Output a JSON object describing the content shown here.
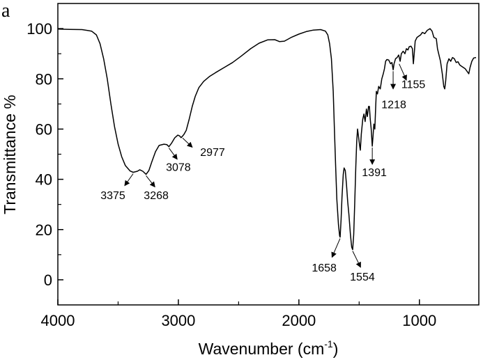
{
  "chart_data": {
    "type": "line",
    "panel_label": "a",
    "xlabel": "Wavenumber (cm",
    "xlabel_sup": "-1",
    "xlabel_close": ")",
    "ylabel": "Transmittance %",
    "xlim": [
      4000,
      507
    ],
    "ylim": [
      -10,
      110
    ],
    "x_ticks": [
      4000,
      3000,
      2000,
      1000
    ],
    "x_tick_labels": [
      "4000",
      "3000",
      "2000",
      "1000"
    ],
    "x_minor_ticks": [
      3500,
      2500,
      1500
    ],
    "y_ticks": [
      0,
      20,
      40,
      60,
      80,
      100
    ],
    "y_tick_labels": [
      "0",
      "20",
      "40",
      "60",
      "80",
      "100"
    ],
    "y_minor_ticks": [
      -10,
      10,
      30,
      50,
      70,
      90,
      110
    ],
    "grid": false,
    "series": [
      {
        "name": "spectrum",
        "color": "#000000",
        "points": [
          [
            4000,
            99.8
          ],
          [
            3900,
            99.7
          ],
          [
            3800,
            99.6
          ],
          [
            3720,
            99.0
          ],
          [
            3680,
            97.5
          ],
          [
            3650,
            94
          ],
          [
            3620,
            88
          ],
          [
            3590,
            80
          ],
          [
            3560,
            70
          ],
          [
            3530,
            61
          ],
          [
            3500,
            54
          ],
          [
            3470,
            49
          ],
          [
            3440,
            45.5
          ],
          [
            3400,
            43.3
          ],
          [
            3375,
            42.8
          ],
          [
            3340,
            43.2
          ],
          [
            3320,
            43.8
          ],
          [
            3295,
            43.2
          ],
          [
            3268,
            42.0
          ],
          [
            3245,
            43.5
          ],
          [
            3220,
            47
          ],
          [
            3190,
            51
          ],
          [
            3160,
            53.5
          ],
          [
            3120,
            54
          ],
          [
            3095,
            53.8
          ],
          [
            3078,
            53.0
          ],
          [
            3055,
            54.5
          ],
          [
            3030,
            56.5
          ],
          [
            3005,
            57.6
          ],
          [
            2990,
            57.3
          ],
          [
            2977,
            56.6
          ],
          [
            2955,
            57.8
          ],
          [
            2935,
            59.5
          ],
          [
            2910,
            64
          ],
          [
            2885,
            69
          ],
          [
            2860,
            73
          ],
          [
            2830,
            76.5
          ],
          [
            2790,
            79
          ],
          [
            2740,
            81
          ],
          [
            2690,
            82.5
          ],
          [
            2620,
            84.5
          ],
          [
            2550,
            86.5
          ],
          [
            2480,
            89
          ],
          [
            2400,
            92
          ],
          [
            2330,
            94.2
          ],
          [
            2260,
            95.5
          ],
          [
            2200,
            95.6
          ],
          [
            2160,
            94.8
          ],
          [
            2120,
            95.0
          ],
          [
            2060,
            96.6
          ],
          [
            2000,
            97.8
          ],
          [
            1940,
            98.8
          ],
          [
            1880,
            99.4
          ],
          [
            1820,
            99.6
          ],
          [
            1780,
            99.0
          ],
          [
            1760,
            97.5
          ],
          [
            1745,
            94
          ],
          [
            1730,
            88
          ],
          [
            1715,
            75
          ],
          [
            1705,
            60
          ],
          [
            1695,
            45
          ],
          [
            1685,
            32
          ],
          [
            1672,
            22
          ],
          [
            1662,
            17.5
          ],
          [
            1658,
            17.0
          ],
          [
            1650,
            24
          ],
          [
            1642,
            33
          ],
          [
            1632,
            42
          ],
          [
            1625,
            44.5
          ],
          [
            1615,
            43.5
          ],
          [
            1605,
            38
          ],
          [
            1595,
            31
          ],
          [
            1585,
            26
          ],
          [
            1572,
            18
          ],
          [
            1562,
            13
          ],
          [
            1554,
            12.0
          ],
          [
            1545,
            18
          ],
          [
            1537,
            30
          ],
          [
            1528,
            45
          ],
          [
            1520,
            55
          ],
          [
            1513,
            60
          ],
          [
            1505,
            57
          ],
          [
            1495,
            53
          ],
          [
            1490,
            51.6
          ],
          [
            1482,
            58
          ],
          [
            1470,
            64
          ],
          [
            1460,
            66
          ],
          [
            1450,
            63
          ],
          [
            1440,
            68
          ],
          [
            1432,
            65
          ],
          [
            1422,
            69
          ],
          [
            1415,
            69
          ],
          [
            1408,
            64
          ],
          [
            1400,
            60
          ],
          [
            1391,
            53.2
          ],
          [
            1385,
            57
          ],
          [
            1378,
            62
          ],
          [
            1370,
            60
          ],
          [
            1362,
            70
          ],
          [
            1357,
            75
          ],
          [
            1348,
            74
          ],
          [
            1338,
            77
          ],
          [
            1325,
            76
          ],
          [
            1312,
            80
          ],
          [
            1300,
            82
          ],
          [
            1290,
            84
          ],
          [
            1280,
            87
          ],
          [
            1270,
            87.7
          ],
          [
            1255,
            87.5
          ],
          [
            1240,
            86
          ],
          [
            1228,
            86.5
          ],
          [
            1218,
            83.6
          ],
          [
            1210,
            86
          ],
          [
            1198,
            88
          ],
          [
            1185,
            88.5
          ],
          [
            1172,
            89.5
          ],
          [
            1160,
            87.0
          ],
          [
            1150,
            90
          ],
          [
            1135,
            91
          ],
          [
            1120,
            90
          ],
          [
            1108,
            92
          ],
          [
            1095,
            91.5
          ],
          [
            1085,
            92.8
          ],
          [
            1070,
            93
          ],
          [
            1058,
            92
          ],
          [
            1050,
            86.0
          ],
          [
            1043,
            90
          ],
          [
            1035,
            95
          ],
          [
            1020,
            96.5
          ],
          [
            1005,
            97
          ],
          [
            990,
            97.5
          ],
          [
            975,
            98.5
          ],
          [
            955,
            98
          ],
          [
            935,
            99.3
          ],
          [
            912,
            100
          ],
          [
            895,
            99
          ],
          [
            880,
            96.5
          ],
          [
            860,
            96
          ],
          [
            850,
            92
          ],
          [
            840,
            90
          ],
          [
            825,
            87
          ],
          [
            810,
            82
          ],
          [
            798,
            77
          ],
          [
            790,
            76
          ],
          [
            782,
            79
          ],
          [
            770,
            86
          ],
          [
            755,
            88
          ],
          [
            740,
            87
          ],
          [
            725,
            88.5
          ],
          [
            710,
            88
          ],
          [
            695,
            86.5
          ],
          [
            680,
            86.8
          ],
          [
            665,
            85.5
          ],
          [
            650,
            85
          ],
          [
            635,
            84.5
          ],
          [
            620,
            84
          ],
          [
            605,
            83
          ],
          [
            590,
            82
          ],
          [
            580,
            84.5
          ],
          [
            565,
            87
          ],
          [
            550,
            88.3
          ],
          [
            530,
            88.5
          ]
        ]
      }
    ],
    "annotations": [
      {
        "text": "3375",
        "peak": [
          3375,
          42.8
        ],
        "arrow_to": [
          3445,
          37.5
        ],
        "label_at": [
          3543,
          33.8
        ]
      },
      {
        "text": "3268",
        "peak": [
          3268,
          42.0
        ],
        "arrow_to": [
          3195,
          37.0
        ],
        "label_at": [
          3184,
          33.8
        ]
      },
      {
        "text": "3078",
        "peak": [
          3078,
          53.0
        ],
        "arrow_to": [
          3010,
          48.0
        ],
        "label_at": [
          3000,
          45.0
        ]
      },
      {
        "text": "2977",
        "peak": [
          2965,
          57.0
        ],
        "arrow_to": [
          2885,
          52.8
        ],
        "label_at": [
          2716,
          51.0
        ]
      },
      {
        "text": "1658",
        "peak": [
          1658,
          17.0
        ],
        "arrow_to": [
          1725,
          9.0
        ],
        "label_at": [
          1790,
          5.0
        ]
      },
      {
        "text": "1554",
        "peak": [
          1554,
          12.0
        ],
        "arrow_to": [
          1488,
          5.0
        ],
        "label_at": [
          1473,
          1.3
        ]
      },
      {
        "text": "1391",
        "peak": [
          1391,
          53.2
        ],
        "arrow_to": [
          1391,
          46.0
        ],
        "label_at": [
          1374,
          43.0
        ]
      },
      {
        "text": "1218",
        "peak": [
          1218,
          83.6
        ],
        "arrow_to": [
          1218,
          76.0
        ],
        "label_at": [
          1212,
          70.0
        ]
      },
      {
        "text": "1155",
        "peak": [
          1168,
          86.5
        ],
        "arrow_to": [
          1108,
          79.5
        ],
        "label_at": [
          1050,
          78.0
        ]
      }
    ]
  }
}
